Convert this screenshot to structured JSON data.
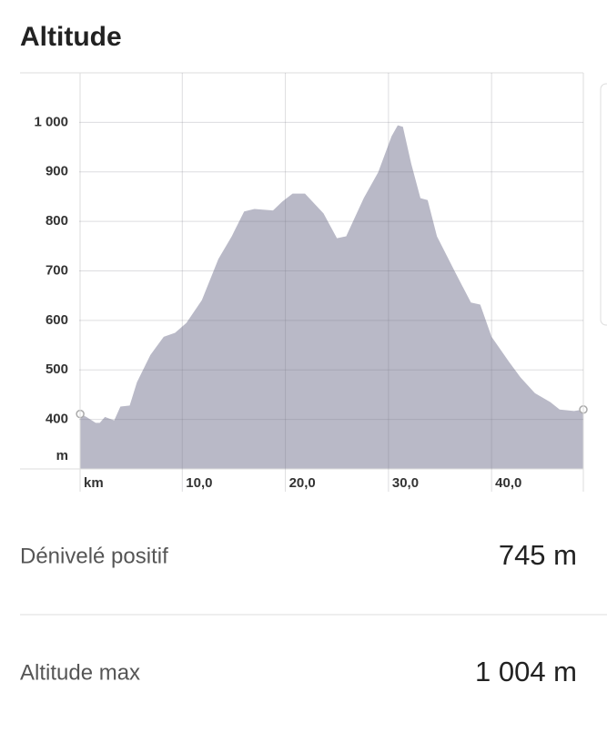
{
  "chart_data": {
    "type": "area",
    "title": "Altitude",
    "x_label": "km",
    "y_label": "m",
    "x": [
      0.1,
      0.7,
      1.6,
      2.0,
      2.5,
      3.4,
      4.0,
      4.9,
      5.6,
      6.9,
      8.2,
      9.3,
      10.4,
      11.9,
      13.5,
      14.8,
      16.0,
      17.0,
      18.8,
      19.7,
      20.7,
      21.9,
      23.7,
      25.0,
      25.9,
      27.6,
      29.0,
      30.3,
      30.9,
      31.4,
      32.2,
      33.1,
      33.8,
      34.7,
      36.5,
      38.0,
      38.9,
      40.0,
      41.7,
      42.8,
      44.2,
      45.7,
      46.6,
      48.0,
      48.9
    ],
    "series": [
      {
        "color": "#b9b9c7",
        "values": [
          411,
          405,
          393,
          393,
          405,
          398,
          426,
          428,
          475,
          530,
          567,
          575,
          595,
          641,
          724,
          770,
          820,
          825,
          822,
          840,
          856,
          856,
          816,
          766,
          770,
          847,
          899,
          972,
          994,
          991,
          917,
          847,
          843,
          770,
          696,
          636,
          632,
          567,
          516,
          485,
          453,
          435,
          420,
          417,
          420
        ]
      }
    ],
    "xlim": [
      0,
      48.9
    ],
    "xticks": [
      {
        "value": 10,
        "label": "10,0"
      },
      {
        "value": 20,
        "label": "20,0"
      },
      {
        "value": 30,
        "label": "30,0"
      },
      {
        "value": 40,
        "label": "40,0"
      }
    ],
    "ylim": [
      300,
      1100
    ],
    "yticks": [
      400,
      500,
      600,
      700,
      800,
      900,
      {
        "value": 1000,
        "label": "1 000"
      }
    ],
    "grid": true
  },
  "stats": [
    {
      "label": "Dénivelé positif",
      "value": "745 m"
    },
    {
      "label": "Altitude max",
      "value": "1 004 m"
    }
  ]
}
